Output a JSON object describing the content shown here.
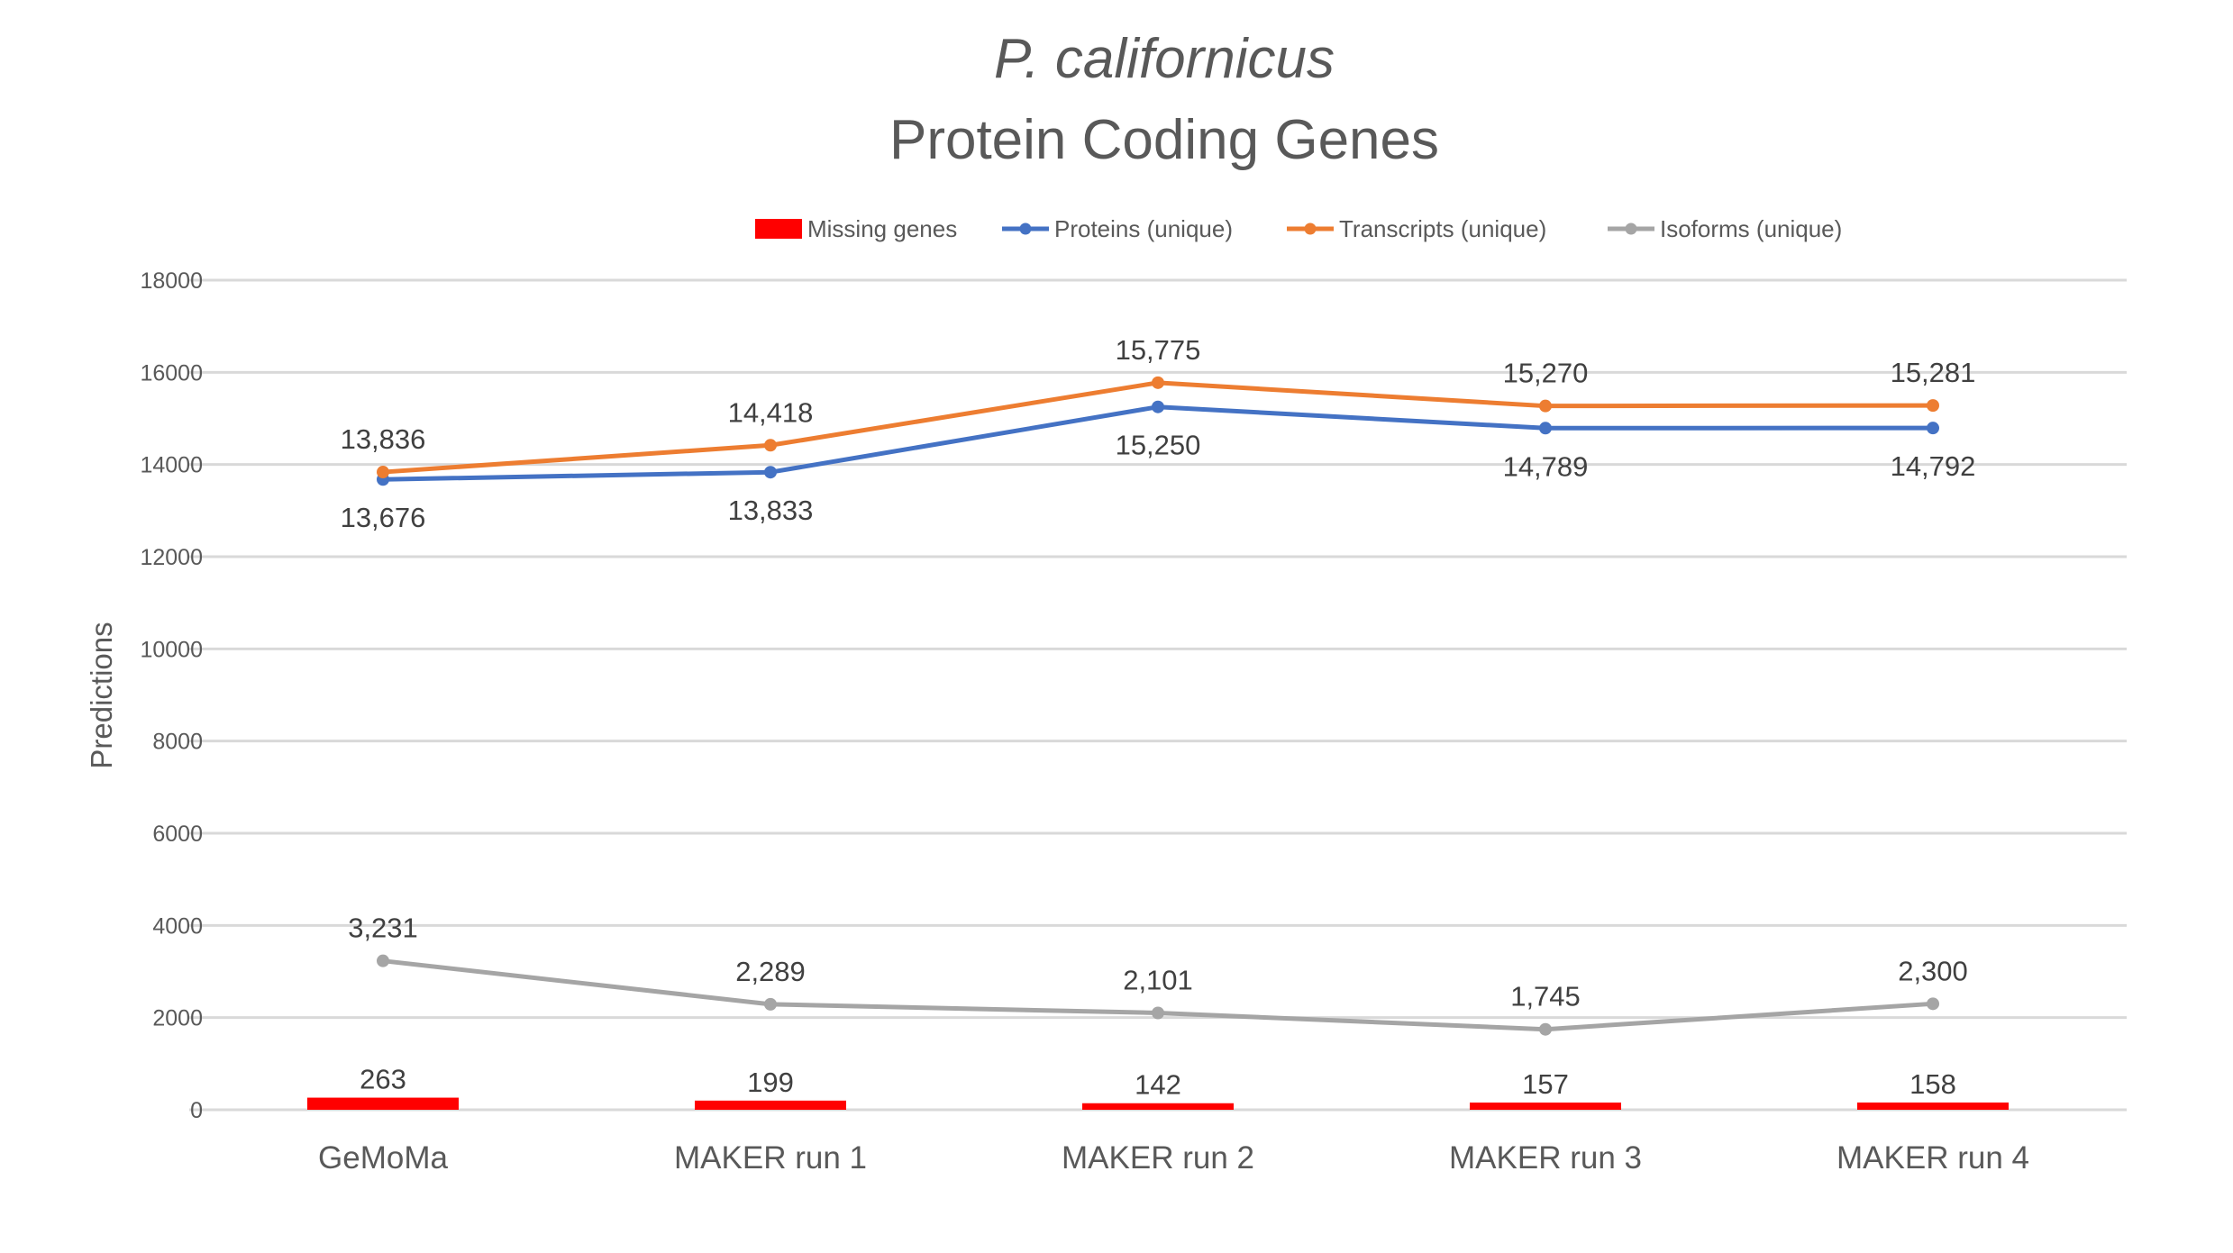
{
  "chart_data": {
    "type": "bar+line",
    "title_line1": "P. californicus",
    "title_line2": "Protein Coding Genes",
    "xlabel": "",
    "ylabel": "Predictions",
    "ylim": [
      0,
      18000
    ],
    "yticks": [
      "0",
      "2000",
      "4000",
      "6000",
      "8000",
      "10000",
      "12000",
      "14000",
      "16000",
      "18000"
    ],
    "grid": true,
    "legend_position": "top",
    "categories": [
      "GeMoMa",
      "MAKER run 1",
      "MAKER run 2",
      "MAKER run 3",
      "MAKER run 4"
    ],
    "series": [
      {
        "name": "Missing genes",
        "kind": "bar",
        "color": "#ff0000",
        "values": [
          263,
          199,
          142,
          157,
          158
        ],
        "labels": [
          "263",
          "199",
          "142",
          "157",
          "158"
        ],
        "label_position": "above"
      },
      {
        "name": "Proteins (unique)",
        "kind": "line",
        "color": "#4472c4",
        "values": [
          13676,
          13833,
          15250,
          14789,
          14792
        ],
        "labels": [
          "13,676",
          "13,833",
          "15,250",
          "14,789",
          "14,792"
        ],
        "label_position": "below"
      },
      {
        "name": "Transcripts (unique)",
        "kind": "line",
        "color": "#ed7d31",
        "values": [
          13836,
          14418,
          15775,
          15270,
          15281
        ],
        "labels": [
          "13,836",
          "14,418",
          "15,775",
          "15,270",
          "15,281"
        ],
        "label_position": "above"
      },
      {
        "name": "Isoforms (unique)",
        "kind": "line",
        "color": "#a5a5a5",
        "values": [
          3231,
          2289,
          2101,
          1745,
          2300
        ],
        "labels": [
          "3,231",
          "2,289",
          "2,101",
          "1,745",
          "2,300"
        ],
        "label_position": "above"
      }
    ]
  }
}
